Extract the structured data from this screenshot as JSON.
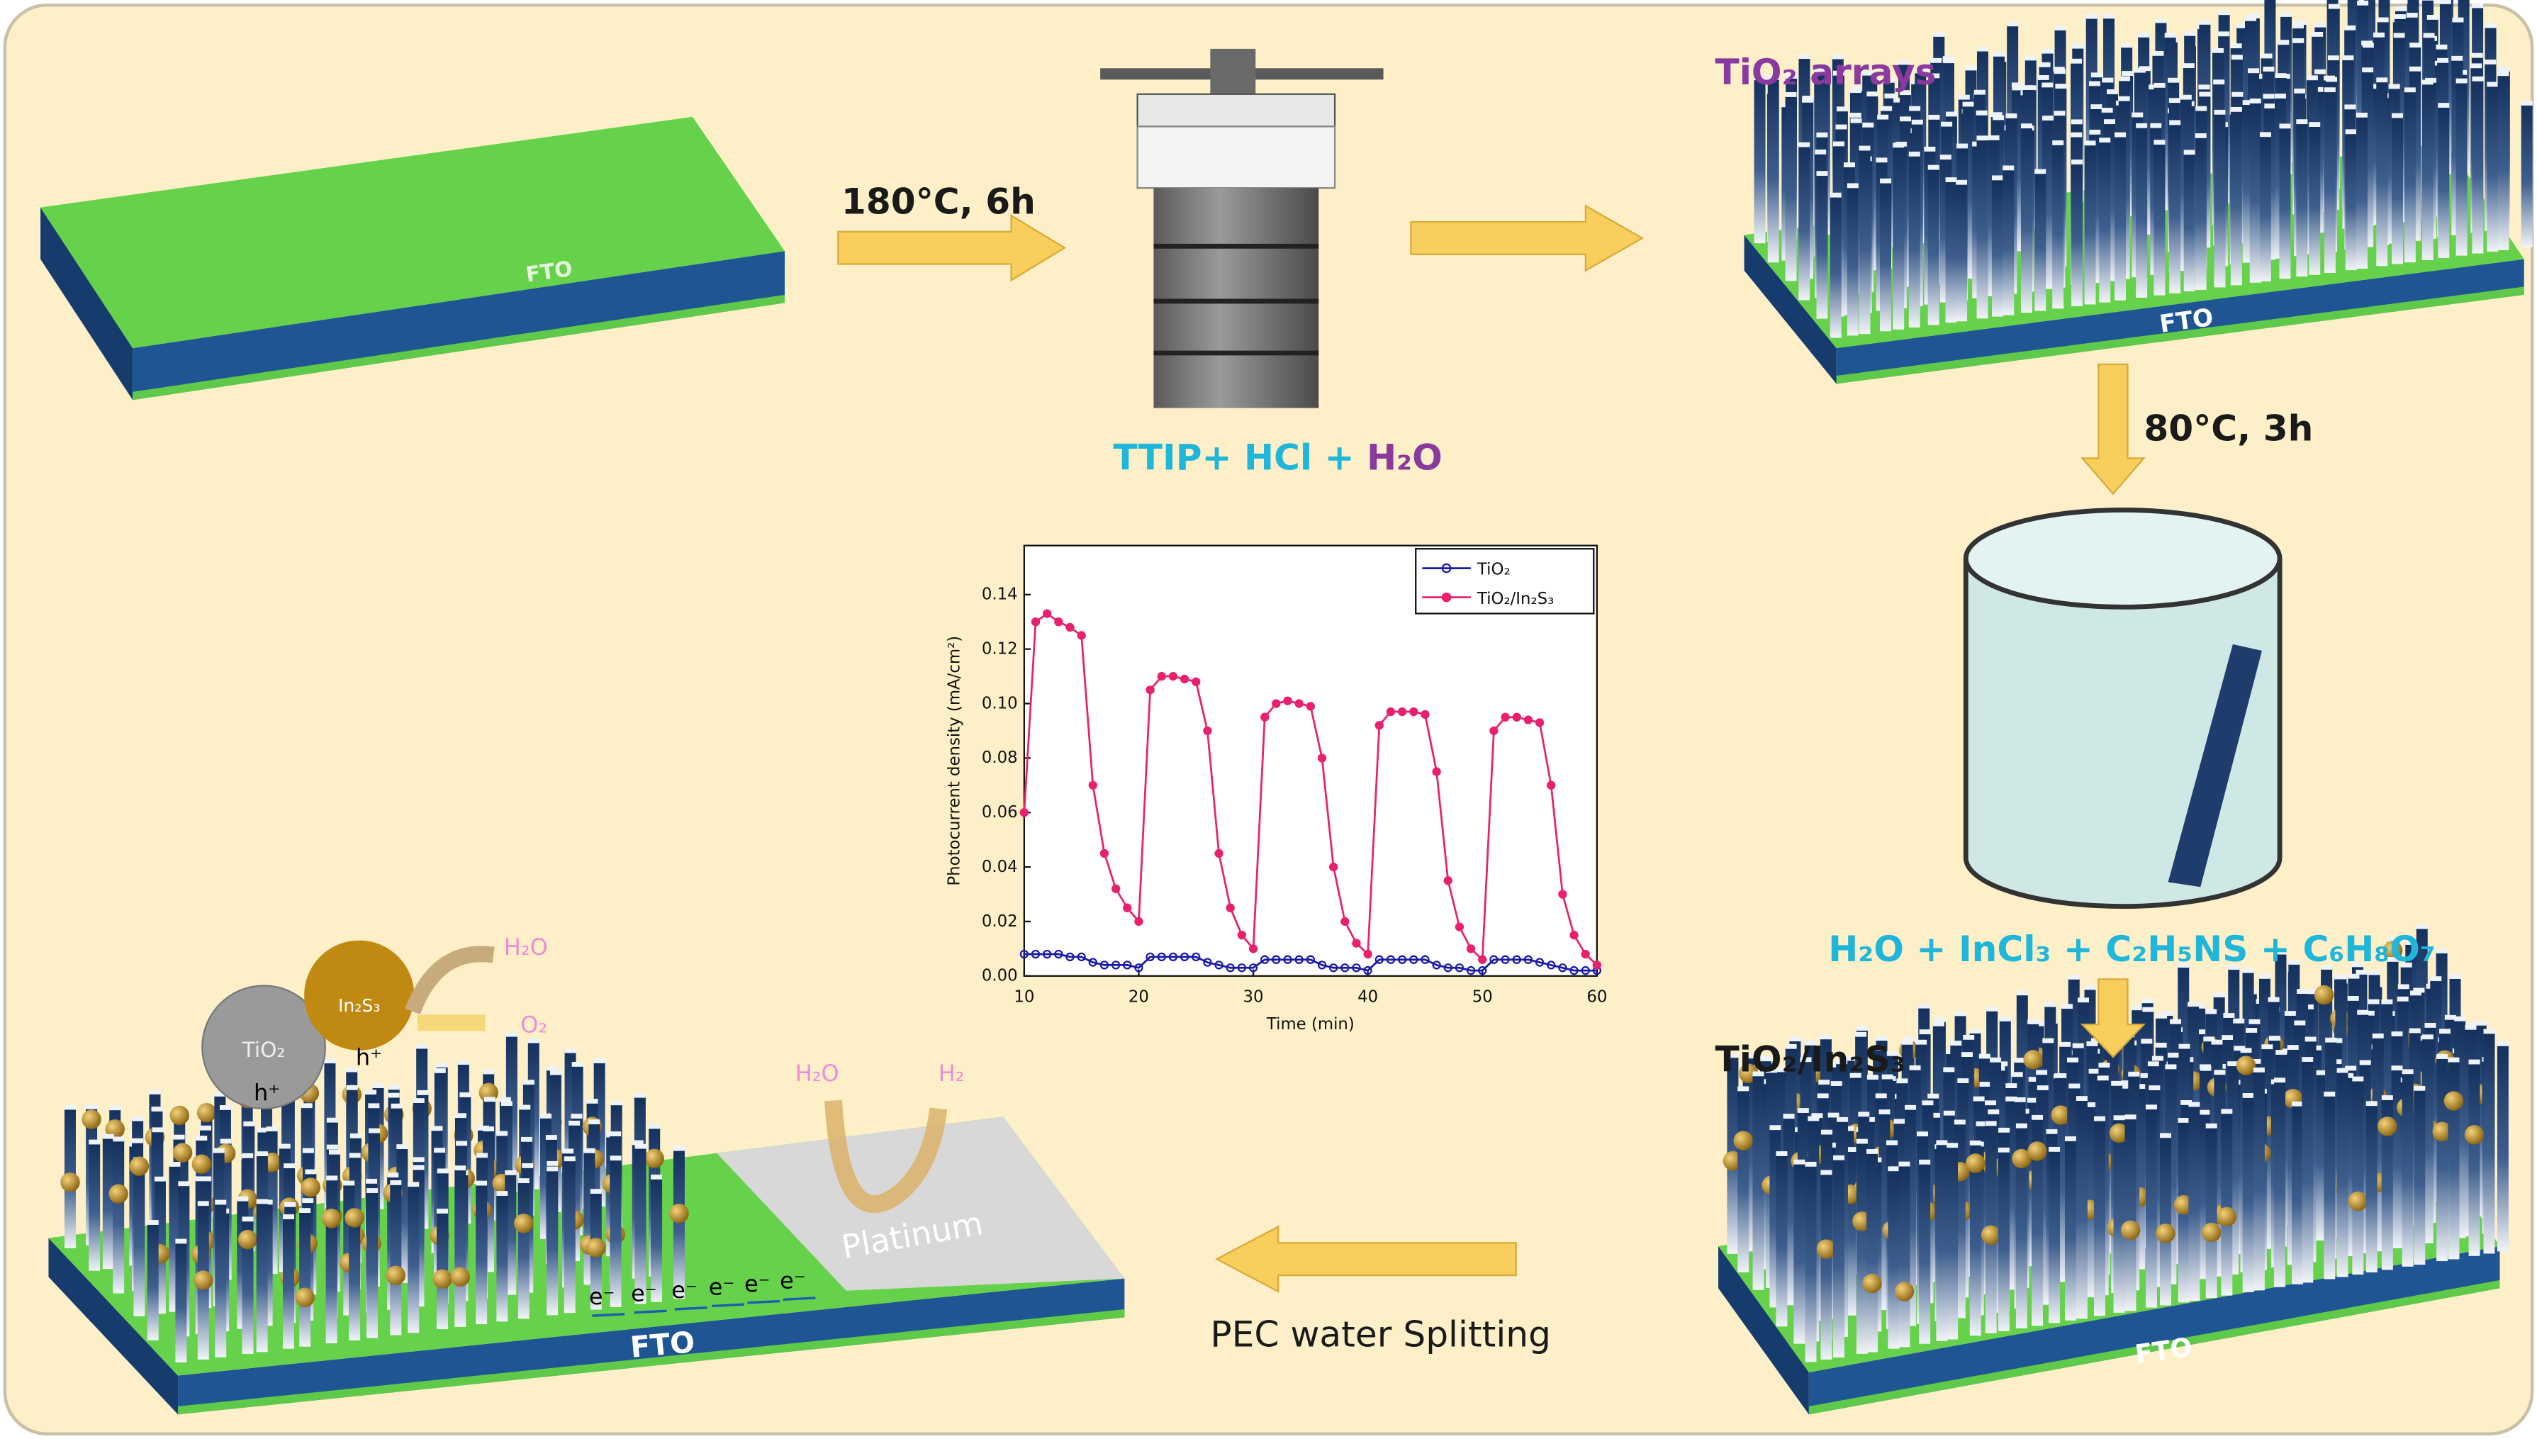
{
  "steps": {
    "hydrothermal": "180°C, 6h",
    "precursor_a": "TTIP+ HCl + ",
    "precursor_b": "H₂O",
    "array_label": "TiO₂ arrays",
    "bath": "80°C, 3h",
    "bath_solution": "H₂O + InCl₃ + C₂H₅NS + C₆H₈O₇",
    "composite_label": "TiO₂/In₂S₃",
    "pec": "PEC water Splitting"
  },
  "substrate_labels": [
    "FTO",
    "FTO",
    "FTO",
    "FTO"
  ],
  "electrode": {
    "platinum": "Platinum",
    "tio2": "TiO₂",
    "in2s3": "In₂S₃",
    "holes": [
      "h⁺",
      "h⁺"
    ],
    "anode_in": "H₂O",
    "anode_out": "O₂",
    "cathode_in": "H₂O",
    "cathode_out": "H₂",
    "electrons": [
      "e⁻",
      "e⁻",
      "e⁻",
      "e⁻",
      "e⁻",
      "e⁻"
    ]
  },
  "chart_data": {
    "type": "line",
    "xlabel": "Time (min)",
    "ylabel": "Photocurrent density (mA/cm²)",
    "xlim": [
      10,
      60
    ],
    "xticks": [
      10,
      20,
      30,
      40,
      50,
      60
    ],
    "ylim": [
      0,
      0.158
    ],
    "yticks": [
      {
        "value": 0,
        "label": "0.00"
      },
      {
        "value": 0.02,
        "label": "0.02"
      },
      {
        "value": 0.04,
        "label": "0.04"
      },
      {
        "value": 0.06,
        "label": "0.06"
      },
      {
        "value": 0.08,
        "label": "0.08"
      },
      {
        "value": 0.1,
        "label": "0.10"
      },
      {
        "value": 0.12,
        "label": "0.12"
      },
      {
        "value": 0.14,
        "label": "0.14"
      }
    ],
    "x": [
      10,
      11,
      12,
      13,
      14,
      15,
      16,
      17,
      18,
      19,
      20,
      21,
      22,
      23,
      24,
      25,
      26,
      27,
      28,
      29,
      30,
      31,
      32,
      33,
      34,
      35,
      36,
      37,
      38,
      39,
      40,
      41,
      42,
      43,
      44,
      45,
      46,
      47,
      48,
      49,
      50,
      51,
      52,
      53,
      54,
      55,
      56,
      57,
      58,
      59,
      60
    ],
    "series": [
      {
        "name": "TiO₂",
        "color": "#1a1aa8",
        "values": [
          0.008,
          0.008,
          0.008,
          0.008,
          0.007,
          0.007,
          0.005,
          0.004,
          0.004,
          0.004,
          0.003,
          0.007,
          0.007,
          0.007,
          0.007,
          0.007,
          0.005,
          0.004,
          0.003,
          0.003,
          0.003,
          0.006,
          0.006,
          0.006,
          0.006,
          0.006,
          0.004,
          0.003,
          0.003,
          0.003,
          0.002,
          0.006,
          0.006,
          0.006,
          0.006,
          0.006,
          0.004,
          0.003,
          0.003,
          0.002,
          0.002,
          0.006,
          0.006,
          0.006,
          0.006,
          0.005,
          0.004,
          0.003,
          0.002,
          0.002,
          0.002
        ]
      },
      {
        "name": "TiO₂/In₂S₃",
        "color": "#e8206e",
        "values": [
          0.06,
          0.13,
          0.133,
          0.13,
          0.128,
          0.125,
          0.07,
          0.045,
          0.032,
          0.025,
          0.02,
          0.105,
          0.11,
          0.11,
          0.109,
          0.108,
          0.09,
          0.045,
          0.025,
          0.015,
          0.01,
          0.095,
          0.1,
          0.101,
          0.1,
          0.099,
          0.08,
          0.04,
          0.02,
          0.012,
          0.008,
          0.092,
          0.097,
          0.097,
          0.097,
          0.096,
          0.075,
          0.035,
          0.018,
          0.01,
          0.006,
          0.09,
          0.095,
          0.095,
          0.094,
          0.093,
          0.07,
          0.03,
          0.015,
          0.008,
          0.004
        ]
      }
    ],
    "legend": "upper right"
  }
}
